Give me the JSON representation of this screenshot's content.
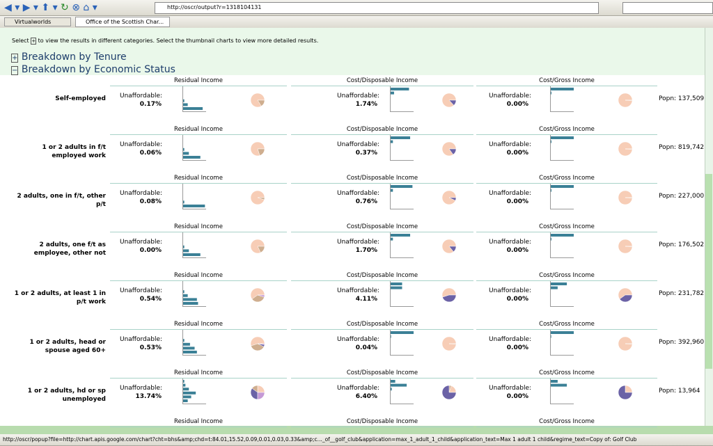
{
  "browser": {
    "url": "http://oscr/output?r=1318104131",
    "tabs": [
      "Virtualworlds",
      "Office of the Scottish Char..."
    ],
    "status": "http://oscr/popup?file=http://chart.apis.google.com/chart?cht=bhs&amp;chd=t:84.01,15.52,0.09,0.01,0.03,0.33&amp;c..._of__golf_club&application=max_1_adult_1_child&application_text=Max 1 adult 1 child&regime_text=Copy of: Golf Club"
  },
  "page": {
    "instruction_start": "Select",
    "instruction_end": "to view the results in different categories. Select the thumbnail charts to view more detailed results.",
    "sections": [
      "Breakdown by Tenure",
      "Breakdown by Economic Status"
    ],
    "columns": [
      "Residual Income",
      "Cost/Disposable Income",
      "Cost/Gross Income"
    ],
    "metric_label": "Unaffordable:",
    "thumb_colors": {
      "bar": "#3b8096",
      "pie": [
        "#f7cdb6",
        "#cfae8f",
        "#6b62a6",
        "#c59ad6"
      ]
    },
    "rows": [
      {
        "label": "Self-employed",
        "values": [
          "0.17%",
          "1.74%",
          "0.00%"
        ],
        "popn": "Popn: 137,509",
        "bars": [
          [
            0,
            0,
            0,
            0.05,
            0.2,
            0.85
          ],
          [
            0.8,
            0.15,
            0,
            0,
            0,
            0
          ],
          [
            1,
            0.03,
            0,
            0,
            0,
            0
          ]
        ],
        "pies": [
          [
            0.84,
            0.16
          ],
          [
            0.87,
            0,
            0.13
          ],
          [
            0.99,
            0.01
          ]
        ]
      },
      {
        "label": "1 or 2 adults in f/t employed work",
        "values": [
          "0.06%",
          "0.37%",
          "0.00%"
        ],
        "popn": "Popn: 819,742",
        "bars": [
          [
            0,
            0,
            0,
            0.05,
            0.25,
            0.75
          ],
          [
            0.85,
            0.1,
            0,
            0,
            0,
            0
          ],
          [
            1,
            0.03,
            0,
            0,
            0,
            0
          ]
        ],
        "pies": [
          [
            0.8,
            0.2
          ],
          [
            0.85,
            0,
            0.15
          ],
          [
            0.99,
            0.01
          ]
        ]
      },
      {
        "label": "2 adults, one in f/t, other p/t",
        "values": [
          "0.08%",
          "0.76%",
          "0.00%"
        ],
        "popn": "Popn: 227,000",
        "bars": [
          [
            0,
            0,
            0,
            0,
            0.05,
            0.95
          ],
          [
            0.95,
            0.1,
            0,
            0,
            0,
            0
          ],
          [
            1,
            0.03,
            0,
            0,
            0,
            0
          ]
        ],
        "pies": [
          [
            0.95,
            0.05
          ],
          [
            0.93,
            0,
            0.07
          ],
          [
            0.99,
            0.01
          ]
        ]
      },
      {
        "label": "2 adults, one f/t as employee, other not",
        "values": [
          "0.00%",
          "1.70%",
          "0.00%"
        ],
        "popn": "Popn: 176,502",
        "bars": [
          [
            0,
            0,
            0,
            0.05,
            0.25,
            0.75
          ],
          [
            0.85,
            0.1,
            0,
            0,
            0,
            0
          ],
          [
            1,
            0.03,
            0,
            0,
            0,
            0
          ]
        ],
        "pies": [
          [
            0.82,
            0.18
          ],
          [
            0.86,
            0,
            0.14
          ],
          [
            0.99,
            0.01
          ]
        ]
      },
      {
        "label": "1 or 2 adults, at least 1 in p/t work",
        "values": [
          "0.54%",
          "4.11%",
          "0.00%"
        ],
        "popn": "Popn: 231,782",
        "bars": [
          [
            0,
            0,
            0.05,
            0.2,
            0.6,
            0.65
          ],
          [
            0.5,
            0.5,
            0,
            0,
            0,
            0
          ],
          [
            0.7,
            0.3,
            0,
            0,
            0,
            0
          ]
        ],
        "pies": [
          [
            0.6,
            0.35,
            0,
            0.05
          ],
          [
            0.55,
            0,
            0.45
          ],
          [
            0.6,
            0,
            0.4
          ]
        ]
      },
      {
        "label": "1 or 2 adults, head or spouse aged 60+",
        "values": [
          "0.53%",
          "0.04%",
          "0.00%"
        ],
        "popn": "Popn: 392,960",
        "bars": [
          [
            0,
            0,
            0.05,
            0.3,
            0.5,
            0.6
          ],
          [
            1,
            0.02,
            0,
            0,
            0,
            0
          ],
          [
            1,
            0.02,
            0,
            0,
            0,
            0
          ]
        ],
        "pies": [
          [
            0.55,
            0.38,
            0.05,
            0.02
          ],
          [
            0.99,
            0.01
          ],
          [
            0.99,
            0.01
          ]
        ]
      },
      {
        "label": "1 or 2 adults, hd or sp unemployed",
        "values": [
          "13.74%",
          "6.40%",
          "0.00%"
        ],
        "popn": "Popn: 13,964",
        "bars": [
          [
            0.05,
            0.1,
            0.25,
            0.55,
            0.35,
            0.2
          ],
          [
            0.2,
            0.7,
            0.05,
            0,
            0,
            0
          ],
          [
            0.3,
            0.7,
            0,
            0,
            0,
            0
          ]
        ],
        "pies": [
          [
            0.25,
            0.15,
            0.35,
            0.25
          ],
          [
            0.2,
            0.05,
            0.75
          ],
          [
            0.25,
            0,
            0.75
          ]
        ]
      }
    ]
  }
}
